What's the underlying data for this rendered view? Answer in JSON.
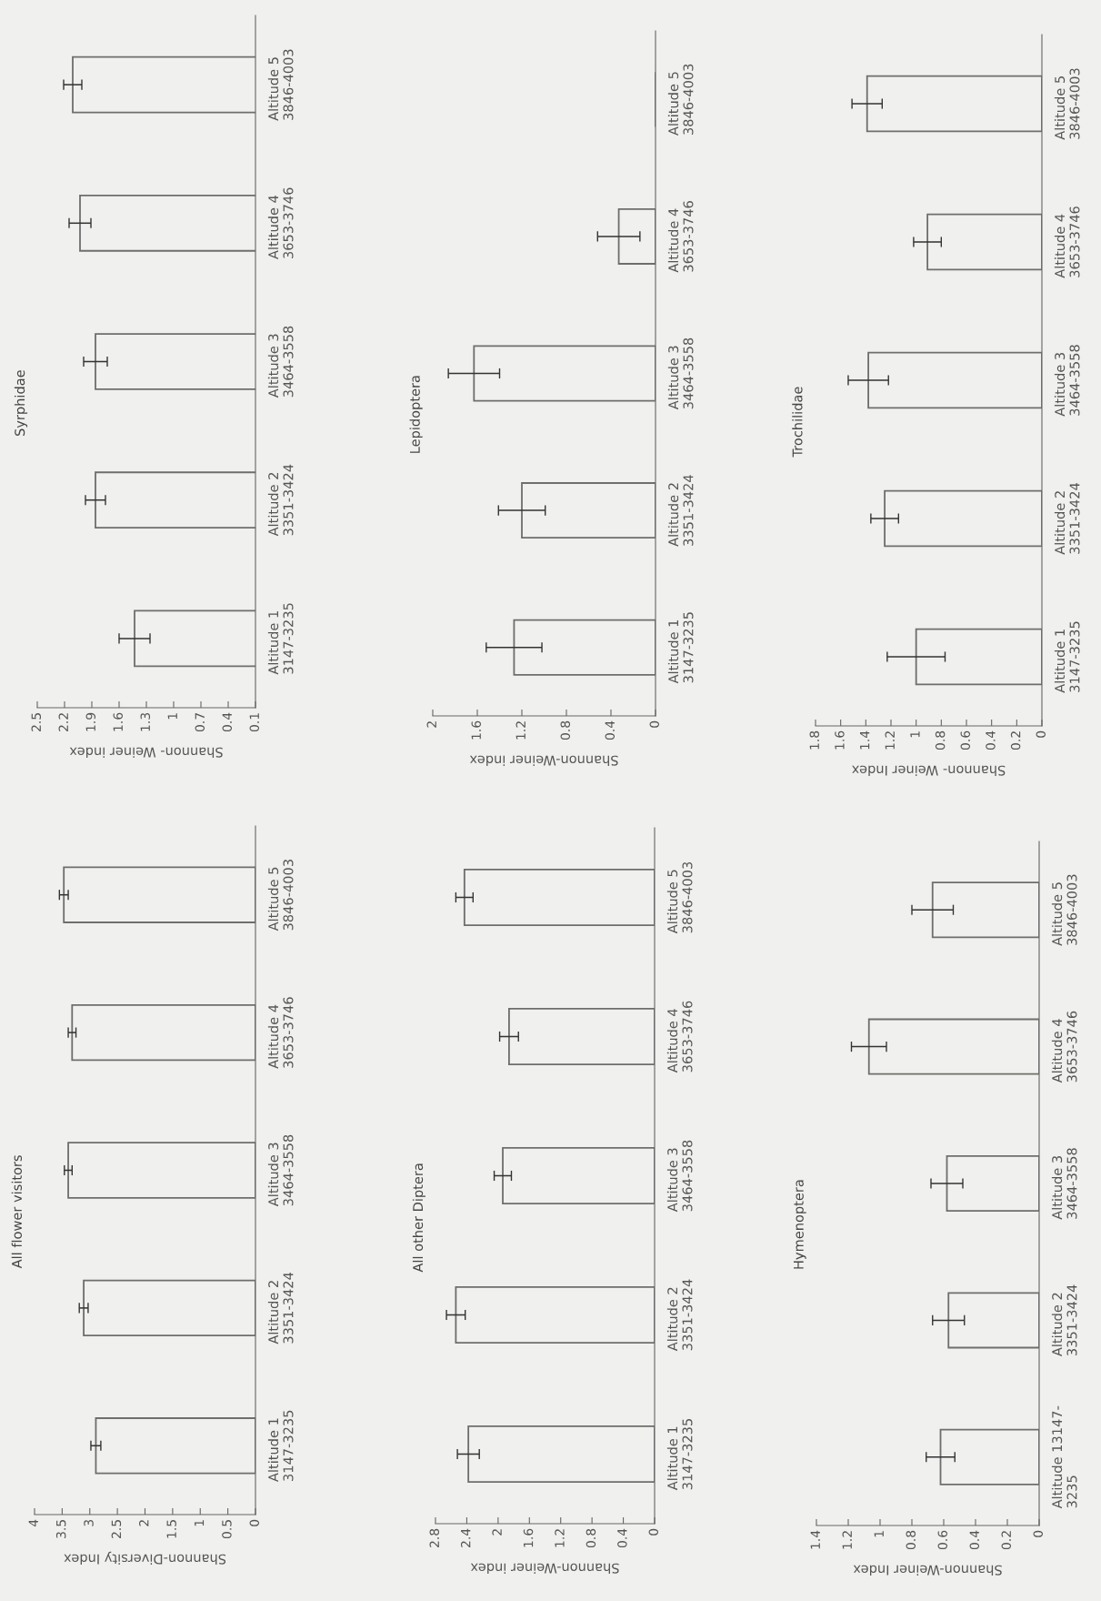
{
  "chart_data": [
    {
      "type": "bar",
      "orientation": "horizontal",
      "title": "Syrphidae",
      "xlabel": "Shannon- Weiner index",
      "categories": [
        "Altitude 5\n3846-4003",
        "Altitude 4\n3653-3746",
        "Altitude 3\n3464-3558",
        "Altitude 2\n3351-3424",
        "Altitude 1\n3147-3235"
      ],
      "series": [
        {
          "color": "#6e6e6e",
          "values": [
            2.11,
            2.03,
            1.86,
            1.86,
            1.43
          ],
          "errors": [
            0.1,
            0.12,
            0.13,
            0.11,
            0.17
          ]
        }
      ],
      "xlim": [
        2.5,
        0.1
      ],
      "xticks": [
        2.5,
        2.2,
        1.9,
        1.6,
        1.3,
        1,
        0.7,
        0.4,
        0.1
      ],
      "grid": false,
      "legend": false
    },
    {
      "type": "bar",
      "orientation": "horizontal",
      "title": "Lepidoptera",
      "xlabel": "Shannon-Weiner index",
      "categories": [
        "Altitude 5\n3846-4003",
        "Altitude 4\n3653-3746",
        "Altitude 3\n3464-3558",
        "Altitude 2\n3351-3424",
        "Altitude 1\n3147-3235"
      ],
      "series": [
        {
          "color": "#6e6e6e",
          "values": [
            0,
            0.33,
            1.63,
            1.2,
            1.27
          ],
          "errors": [
            null,
            0.19,
            0.23,
            0.21,
            0.25
          ]
        }
      ],
      "xlim": [
        2,
        0
      ],
      "xticks": [
        2,
        1.6,
        1.2,
        0.8,
        0.4,
        0
      ],
      "grid": false,
      "legend": false
    },
    {
      "type": "bar",
      "orientation": "horizontal",
      "title": "Trochilidae",
      "xlabel": "Shannon- Weiner Index",
      "categories": [
        "Altitude 5\n3846-4003",
        "Altitude 4\n3653-3746",
        "Altitude 3\n3464-3558",
        "Altitude 2\n3351-3424",
        "Altitude 1\n3147-3235"
      ],
      "series": [
        {
          "color": "#6e6e6e",
          "values": [
            1.39,
            0.91,
            1.38,
            1.25,
            1.0
          ],
          "errors": [
            0.12,
            0.11,
            0.16,
            0.11,
            0.23
          ]
        }
      ],
      "xlim": [
        1.8,
        0
      ],
      "xticks": [
        1.8,
        1.6,
        1.4,
        1.2,
        1,
        0.8,
        0.6,
        0.4,
        0.2,
        0
      ],
      "grid": false,
      "legend": false
    },
    {
      "type": "bar",
      "orientation": "horizontal",
      "title": "All flower visitors",
      "xlabel": "Shannon-Diversity Index",
      "categories": [
        "Altitude 5\n3846-4003",
        "Altitude 4\n3653-3746",
        "Altitude 3\n3464-3558",
        "Altitude 2\n3351-3424",
        "Altitude 1\n3147-3235"
      ],
      "series": [
        {
          "color": "#6e6e6e",
          "values": [
            3.47,
            3.32,
            3.39,
            3.11,
            2.89
          ],
          "errors": [
            0.08,
            0.07,
            0.07,
            0.08,
            0.09
          ]
        }
      ],
      "xlim": [
        4,
        0
      ],
      "xticks": [
        4,
        3.5,
        3,
        2.5,
        2,
        1.5,
        1,
        0.5,
        0
      ],
      "grid": false,
      "legend": false
    },
    {
      "type": "bar",
      "orientation": "horizontal",
      "title": "All other Diptera",
      "xlabel": "Shannon-Weiner index",
      "categories": [
        "Altitude 5\n3846-4003",
        "Altitude 4\n3653-3746",
        "Altitude 3\n3464-3558",
        "Altitude 2\n3351-3424",
        "Altitude 1\n3147-3235"
      ],
      "series": [
        {
          "color": "#6e6e6e",
          "values": [
            2.43,
            1.86,
            1.94,
            2.54,
            2.38
          ],
          "errors": [
            0.11,
            0.12,
            0.11,
            0.12,
            0.14
          ]
        }
      ],
      "xlim": [
        2.8,
        0
      ],
      "xticks": [
        2.8,
        2.4,
        2,
        1.6,
        1.2,
        0.8,
        0.4,
        0
      ],
      "grid": false,
      "legend": false
    },
    {
      "type": "bar",
      "orientation": "horizontal",
      "title": "Hymenoptera",
      "xlabel": "Shannon-Weiner Index",
      "categories": [
        "Altitude 5\n3846-4003",
        "Altitude 4\n3653-3746",
        "Altitude 3\n3464-3558",
        "Altitude 2\n3351-3424",
        "Altitude 13147-\n3235"
      ],
      "series": [
        {
          "color": "#6e6e6e",
          "values": [
            0.67,
            1.07,
            0.58,
            0.57,
            0.62
          ],
          "errors": [
            0.13,
            0.11,
            0.1,
            0.1,
            0.09
          ]
        }
      ],
      "xlim": [
        1.4,
        0
      ],
      "xticks": [
        1.4,
        1.2,
        1,
        0.8,
        0.6,
        0.4,
        0.2,
        0
      ],
      "grid": false,
      "legend": false
    }
  ]
}
